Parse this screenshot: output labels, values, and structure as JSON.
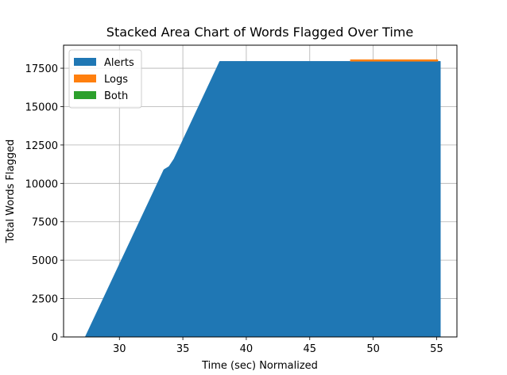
{
  "chart_data": {
    "type": "area",
    "stacked": true,
    "title": "Stacked Area Chart of Words Flagged Over Time",
    "xlabel": "Time (sec) Normalized",
    "ylabel": "Total Words Flagged",
    "xlim": [
      25.6,
      56.6
    ],
    "ylim": [
      0,
      19000
    ],
    "xticks": [
      30,
      35,
      40,
      45,
      50,
      55
    ],
    "yticks": [
      0,
      2500,
      5000,
      7500,
      10000,
      12500,
      15000,
      17500
    ],
    "grid": true,
    "legend_position": "top-left",
    "series": [
      {
        "name": "Alerts",
        "color": "#1f77b4",
        "points": [
          [
            27.3,
            0
          ],
          [
            33.5,
            10900
          ],
          [
            33.9,
            11100
          ],
          [
            34.3,
            11600
          ],
          [
            37.9,
            17950
          ],
          [
            55.3,
            17950
          ]
        ]
      },
      {
        "name": "Logs",
        "color": "#ff7f0e",
        "points": [
          [
            48.2,
            110
          ],
          [
            55.1,
            110
          ]
        ]
      },
      {
        "name": "Both",
        "color": "#2ca02c",
        "points": []
      }
    ]
  }
}
